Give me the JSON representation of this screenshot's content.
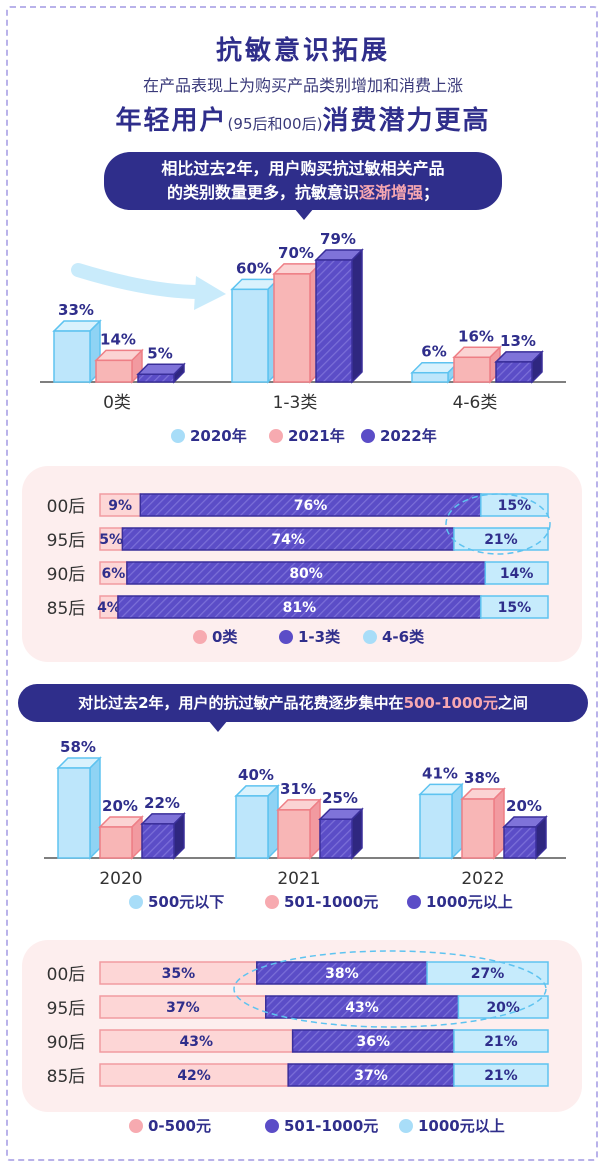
{
  "header": {
    "title": "抗敏意识拓展",
    "subtitle": "在产品表现上为购买产品类别增加和消费上涨",
    "highlight_a": "年轻用户",
    "highlight_paren": "(95后和00后)",
    "highlight_b": "消费潜力更高"
  },
  "callout1": {
    "line1": "相比过去2年，用户购买抗过敏相关产品",
    "line2_a": "的类别数量更多，抗敏意识",
    "line2_hl": "逐渐增强",
    "line2_b": "；"
  },
  "callout2": {
    "text_a": "对比过去2年，用户的抗过敏产品花费逐步集中在",
    "text_hl": "500-1000元",
    "text_b": "之间"
  },
  "colors": {
    "blue": "#bde6fb",
    "blue_edge": "#5ec3f0",
    "pink": "#f8b6b6",
    "pink_edge": "#ee7f86",
    "purple": "#5b4dc7",
    "purple_edge": "#3a2f9a",
    "navy": "#2f2e8b"
  },
  "chart_data": [
    {
      "type": "bar",
      "categories": [
        "0类",
        "1-3类",
        "4-6类"
      ],
      "series": [
        {
          "name": "2020年",
          "values": [
            33,
            60,
            6
          ],
          "labels": [
            "33%",
            "60%",
            "6%"
          ]
        },
        {
          "name": "2021年",
          "values": [
            14,
            70,
            16
          ],
          "labels": [
            "14%",
            "70%",
            "16%"
          ]
        },
        {
          "name": "2022年",
          "values": [
            5,
            79,
            13
          ],
          "labels": [
            "5%",
            "79%",
            "13%"
          ]
        }
      ]
    },
    {
      "type": "bar",
      "orientation": "horizontal-stacked",
      "categories": [
        "00后",
        "95后",
        "90后",
        "85后"
      ],
      "series": [
        {
          "name": "0类",
          "values": [
            9,
            5,
            6,
            4
          ],
          "labels": [
            "9%",
            "5%",
            "6%",
            "4%"
          ]
        },
        {
          "name": "1-3类",
          "values": [
            76,
            74,
            80,
            81
          ],
          "labels": [
            "76%",
            "74%",
            "80%",
            "81%"
          ]
        },
        {
          "name": "4-6类",
          "values": [
            15,
            21,
            14,
            15
          ],
          "labels": [
            "15%",
            "21%",
            "14%",
            "15%"
          ]
        }
      ]
    },
    {
      "type": "bar",
      "categories": [
        "2020",
        "2021",
        "2022"
      ],
      "series": [
        {
          "name": "500元以下",
          "values": [
            58,
            40,
            41
          ],
          "labels": [
            "58%",
            "40%",
            "41%"
          ]
        },
        {
          "name": "501-1000元",
          "values": [
            20,
            31,
            38
          ],
          "labels": [
            "20%",
            "31%",
            "38%"
          ]
        },
        {
          "name": "1000元以上",
          "values": [
            22,
            25,
            20
          ],
          "labels": [
            "22%",
            "25%",
            "20%"
          ]
        }
      ]
    },
    {
      "type": "bar",
      "orientation": "horizontal-stacked",
      "categories": [
        "00后",
        "95后",
        "90后",
        "85后"
      ],
      "series": [
        {
          "name": "0-500元",
          "values": [
            35,
            37,
            43,
            42
          ],
          "labels": [
            "35%",
            "37%",
            "43%",
            "42%"
          ]
        },
        {
          "name": "501-1000元",
          "values": [
            38,
            43,
            36,
            37
          ],
          "labels": [
            "38%",
            "43%",
            "36%",
            "37%"
          ]
        },
        {
          "name": "1000元以上",
          "values": [
            27,
            20,
            21,
            21
          ],
          "labels": [
            "27%",
            "20%",
            "21%",
            "21%"
          ]
        }
      ]
    }
  ]
}
